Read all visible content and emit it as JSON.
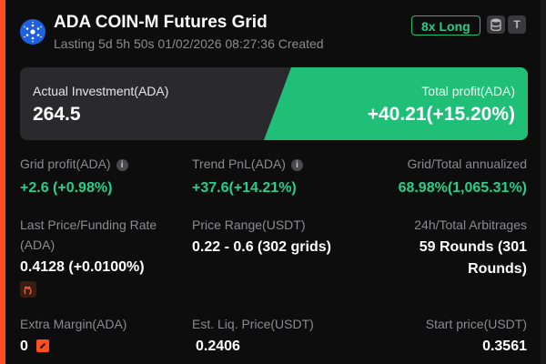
{
  "header": {
    "title": "ADA COIN-M Futures Grid",
    "subtitle": "Lasting 5d 5h 50s 01/02/2026 08:27:36 Created",
    "badge": "8x Long",
    "icons": [
      "database-icon",
      "t-icon"
    ],
    "icon_t_glyph": "T"
  },
  "summary": {
    "investment_label": "Actual Investment(ADA)",
    "investment_value": "264.5",
    "profit_label": "Total profit(ADA)",
    "profit_value": "+40.21(+15.20%)"
  },
  "stats": {
    "grid_profit_label": "Grid profit(ADA)",
    "grid_profit_value": "+2.6 (+0.98%)",
    "trend_pnl_label": "Trend PnL(ADA)",
    "trend_pnl_value": "+37.6(+14.21%)",
    "annualized_label": "Grid/Total annualized",
    "annualized_value": "68.98%(1,065.31%)",
    "last_price_label_1": "Last Price/Funding Rate",
    "last_price_label_2": "(ADA)",
    "last_price_value": "0.4128 (+0.0100%)",
    "price_range_label": "Price Range(USDT)",
    "price_range_value": "0.22 - 0.6 (302 grids)",
    "arbitrages_label": "24h/Total Arbitrages",
    "arbitrages_value_1": "59 Rounds (301",
    "arbitrages_value_2": "Rounds)",
    "extra_margin_label": "Extra Margin(ADA)",
    "extra_margin_value": "0",
    "liq_price_label": "Est. Liq. Price(USDT)",
    "liq_price_value": "0.2406",
    "start_price_label": "Start price(USDT)",
    "start_price_value": "0.3561"
  },
  "colors": {
    "accent": "#ff4d1f",
    "profit_green": "#23d18b",
    "panel_green": "#1fbf78",
    "background": "#0d0d0e"
  }
}
